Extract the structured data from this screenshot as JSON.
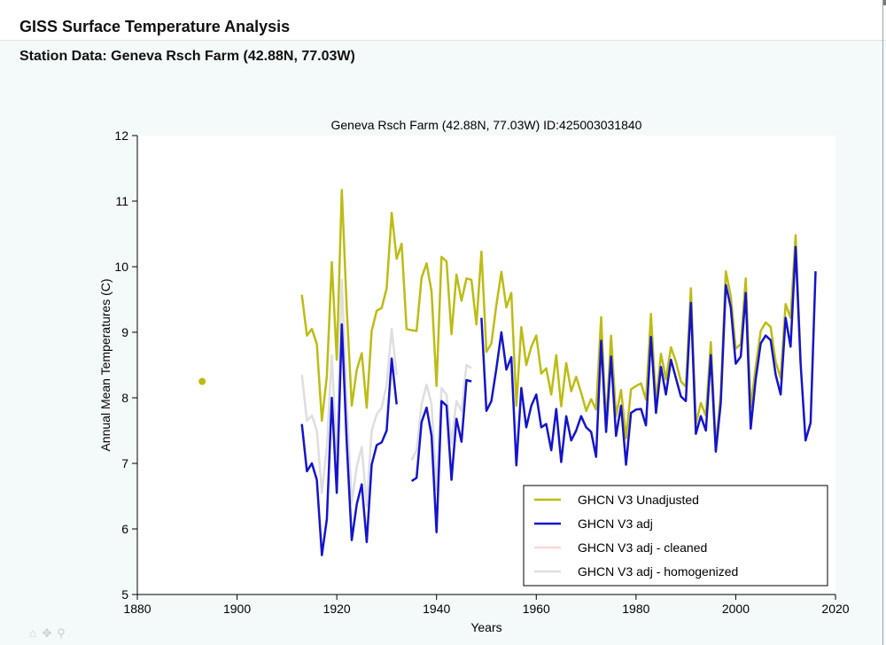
{
  "header": {
    "title": "GISS Surface Temperature Analysis",
    "station_heading": "Station Data: Geneva Rsch Farm (42.88N, 77.03W)"
  },
  "nav_tools": [
    {
      "name": "home-icon",
      "glyph": "⌂"
    },
    {
      "name": "pan-icon",
      "glyph": "✥"
    },
    {
      "name": "zoom-icon",
      "glyph": "⚲"
    }
  ],
  "chart_data": {
    "type": "line",
    "title": "Geneva Rsch Farm (42.88N, 77.03W) ID:425003031840",
    "xlabel": "Years",
    "ylabel": "Annual Mean Temperatures (C)",
    "xlim": [
      1880,
      2020
    ],
    "ylim": [
      5,
      12
    ],
    "xticks": [
      1880,
      1900,
      1920,
      1940,
      1960,
      1980,
      2000,
      2020
    ],
    "yticks": [
      5,
      6,
      7,
      8,
      9,
      10,
      11,
      12
    ],
    "legend_position": "bottom-right",
    "series": [
      {
        "name": "GHCN V3 adj - homogenized",
        "color": "#dedede",
        "segments": [
          [
            [
              1913,
              8.35
            ],
            [
              1914,
              7.65
            ],
            [
              1915,
              7.73
            ],
            [
              1916,
              7.5
            ],
            [
              1917,
              6.55
            ],
            [
              1918,
              7.25
            ],
            [
              1919,
              8.65
            ],
            [
              1920,
              7.1
            ],
            [
              1921,
              9.8
            ],
            [
              1922,
              7.9
            ],
            [
              1923,
              6.4
            ],
            [
              1924,
              6.95
            ],
            [
              1925,
              7.25
            ],
            [
              1926,
              6.35
            ],
            [
              1927,
              7.5
            ],
            [
              1928,
              7.75
            ],
            [
              1929,
              7.85
            ],
            [
              1930,
              8.2
            ],
            [
              1931,
              9.05
            ],
            [
              1932,
              8.35
            ]
          ],
          [
            [
              1935,
              7.05
            ],
            [
              1936,
              7.2
            ],
            [
              1937,
              7.9
            ],
            [
              1938,
              8.2
            ],
            [
              1939,
              7.9
            ],
            [
              1940,
              6.6
            ],
            [
              1941,
              8.15
            ],
            [
              1942,
              8.05
            ],
            [
              1943,
              7.3
            ],
            [
              1944,
              7.95
            ],
            [
              1945,
              7.8
            ],
            [
              1946,
              8.5
            ],
            [
              1947,
              8.45
            ]
          ]
        ]
      },
      {
        "name": "GHCN V3 adj - cleaned",
        "color": "#ffd6d6",
        "segments": []
      },
      {
        "name": "GHCN V3 Unadjusted",
        "color": "#bcbc14",
        "points": [
          [
            1893,
            8.25
          ]
        ],
        "segments": [
          [
            [
              1913,
              9.57
            ],
            [
              1914,
              8.95
            ],
            [
              1915,
              9.05
            ],
            [
              1916,
              8.82
            ],
            [
              1917,
              7.65
            ],
            [
              1918,
              8.33
            ],
            [
              1919,
              10.07
            ],
            [
              1920,
              8.58
            ],
            [
              1921,
              11.17
            ],
            [
              1922,
              9.35
            ],
            [
              1923,
              7.88
            ],
            [
              1924,
              8.43
            ],
            [
              1925,
              8.68
            ],
            [
              1926,
              7.85
            ],
            [
              1927,
              9.02
            ],
            [
              1928,
              9.33
            ],
            [
              1929,
              9.37
            ],
            [
              1930,
              9.67
            ],
            [
              1931,
              10.82
            ],
            [
              1932,
              10.12
            ],
            [
              1933,
              10.35
            ],
            [
              1934,
              9.05
            ],
            [
              1935,
              9.03
            ],
            [
              1936,
              9.02
            ],
            [
              1937,
              9.83
            ],
            [
              1938,
              10.05
            ],
            [
              1939,
              9.62
            ],
            [
              1940,
              8.18
            ],
            [
              1941,
              10.15
            ],
            [
              1942,
              10.08
            ],
            [
              1943,
              8.97
            ],
            [
              1944,
              9.88
            ],
            [
              1945,
              9.48
            ],
            [
              1946,
              9.82
            ],
            [
              1947,
              9.8
            ],
            [
              1948,
              9.12
            ],
            [
              1949,
              10.23
            ],
            [
              1950,
              8.7
            ],
            [
              1951,
              8.83
            ],
            [
              1952,
              9.42
            ],
            [
              1953,
              9.92
            ],
            [
              1954,
              9.38
            ],
            [
              1955,
              9.6
            ],
            [
              1956,
              7.88
            ],
            [
              1957,
              9.08
            ],
            [
              1958,
              8.5
            ],
            [
              1959,
              8.78
            ],
            [
              1960,
              8.95
            ],
            [
              1961,
              8.37
            ],
            [
              1962,
              8.45
            ],
            [
              1963,
              8.05
            ],
            [
              1964,
              8.65
            ],
            [
              1965,
              7.87
            ],
            [
              1966,
              8.53
            ],
            [
              1967,
              8.1
            ],
            [
              1968,
              8.32
            ],
            [
              1969,
              8.08
            ],
            [
              1970,
              7.8
            ],
            [
              1971,
              7.98
            ],
            [
              1972,
              7.82
            ],
            [
              1973,
              9.23
            ],
            [
              1974,
              7.58
            ],
            [
              1975,
              8.95
            ],
            [
              1976,
              7.72
            ],
            [
              1977,
              8.12
            ],
            [
              1978,
              7.38
            ],
            [
              1979,
              8.13
            ],
            [
              1980,
              8.18
            ],
            [
              1981,
              8.22
            ],
            [
              1982,
              7.97
            ],
            [
              1983,
              9.28
            ],
            [
              1984,
              7.92
            ],
            [
              1985,
              8.67
            ],
            [
              1986,
              8.28
            ],
            [
              1987,
              8.77
            ],
            [
              1988,
              8.55
            ],
            [
              1989,
              8.25
            ],
            [
              1990,
              8.17
            ],
            [
              1991,
              9.67
            ],
            [
              1992,
              7.6
            ],
            [
              1993,
              7.92
            ],
            [
              1994,
              7.73
            ],
            [
              1995,
              8.85
            ],
            [
              1996,
              7.27
            ],
            [
              1997,
              8.05
            ],
            [
              1998,
              9.93
            ],
            [
              1999,
              9.55
            ],
            [
              2000,
              8.75
            ],
            [
              2001,
              8.82
            ],
            [
              2002,
              9.82
            ],
            [
              2003,
              7.85
            ],
            [
              2004,
              8.47
            ],
            [
              2005,
              9.02
            ],
            [
              2006,
              9.15
            ],
            [
              2007,
              9.08
            ],
            [
              2008,
              8.55
            ],
            [
              2009,
              8.3
            ],
            [
              2010,
              9.43
            ],
            [
              2011,
              9.22
            ],
            [
              2012,
              10.48
            ],
            [
              2013,
              8.55
            ]
          ]
        ]
      },
      {
        "name": "GHCN V3 adj",
        "color": "#1414cc",
        "segments": [
          [
            [
              1913,
              7.6
            ],
            [
              1914,
              6.88
            ],
            [
              1915,
              7.0
            ],
            [
              1916,
              6.75
            ],
            [
              1917,
              5.6
            ],
            [
              1918,
              6.15
            ],
            [
              1919,
              8.0
            ],
            [
              1920,
              6.55
            ],
            [
              1921,
              9.12
            ],
            [
              1922,
              7.3
            ],
            [
              1923,
              5.83
            ],
            [
              1924,
              6.38
            ],
            [
              1925,
              6.68
            ],
            [
              1926,
              5.8
            ],
            [
              1927,
              6.98
            ],
            [
              1928,
              7.28
            ],
            [
              1929,
              7.32
            ],
            [
              1930,
              7.5
            ],
            [
              1931,
              8.6
            ],
            [
              1932,
              7.9
            ]
          ],
          [
            [
              1935,
              6.73
            ],
            [
              1936,
              6.78
            ],
            [
              1937,
              7.63
            ],
            [
              1938,
              7.85
            ],
            [
              1939,
              7.42
            ],
            [
              1940,
              5.95
            ],
            [
              1941,
              7.95
            ],
            [
              1942,
              7.88
            ],
            [
              1943,
              6.75
            ],
            [
              1944,
              7.68
            ],
            [
              1945,
              7.33
            ],
            [
              1946,
              8.27
            ],
            [
              1947,
              8.25
            ]
          ],
          [
            [
              1949,
              9.22
            ],
            [
              1950,
              7.8
            ],
            [
              1951,
              7.95
            ],
            [
              1952,
              8.45
            ],
            [
              1953,
              9.0
            ],
            [
              1954,
              8.43
            ],
            [
              1955,
              8.62
            ],
            [
              1956,
              6.97
            ],
            [
              1957,
              8.15
            ],
            [
              1958,
              7.55
            ],
            [
              1959,
              7.88
            ],
            [
              1960,
              8.05
            ],
            [
              1961,
              7.55
            ],
            [
              1962,
              7.6
            ],
            [
              1963,
              7.2
            ],
            [
              1964,
              7.83
            ],
            [
              1965,
              7.02
            ],
            [
              1966,
              7.72
            ],
            [
              1967,
              7.35
            ],
            [
              1968,
              7.5
            ],
            [
              1969,
              7.72
            ],
            [
              1970,
              7.55
            ],
            [
              1971,
              7.48
            ],
            [
              1972,
              7.1
            ],
            [
              1973,
              8.87
            ],
            [
              1974,
              7.48
            ],
            [
              1975,
              8.63
            ],
            [
              1976,
              7.42
            ],
            [
              1977,
              7.88
            ],
            [
              1978,
              6.98
            ],
            [
              1979,
              7.77
            ],
            [
              1980,
              7.82
            ],
            [
              1981,
              7.83
            ],
            [
              1982,
              7.58
            ],
            [
              1983,
              8.93
            ],
            [
              1984,
              7.77
            ],
            [
              1985,
              8.47
            ],
            [
              1986,
              8.05
            ],
            [
              1987,
              8.58
            ],
            [
              1988,
              8.3
            ],
            [
              1989,
              8.02
            ],
            [
              1990,
              7.95
            ],
            [
              1991,
              9.45
            ],
            [
              1992,
              7.45
            ],
            [
              1993,
              7.72
            ],
            [
              1994,
              7.5
            ],
            [
              1995,
              8.65
            ],
            [
              1996,
              7.18
            ],
            [
              1997,
              7.92
            ],
            [
              1998,
              9.72
            ],
            [
              1999,
              9.38
            ],
            [
              2000,
              8.52
            ],
            [
              2001,
              8.63
            ],
            [
              2002,
              9.6
            ],
            [
              2003,
              7.53
            ],
            [
              2004,
              8.28
            ],
            [
              2005,
              8.83
            ],
            [
              2006,
              8.95
            ],
            [
              2007,
              8.88
            ],
            [
              2008,
              8.35
            ],
            [
              2009,
              8.05
            ],
            [
              2010,
              9.22
            ],
            [
              2011,
              8.78
            ],
            [
              2012,
              10.3
            ],
            [
              2013,
              8.53
            ],
            [
              2014,
              7.35
            ],
            [
              2015,
              7.62
            ],
            [
              2016,
              9.93
            ]
          ]
        ]
      }
    ],
    "legend": [
      {
        "label": "GHCN V3 Unadjusted",
        "color": "#bcbc14"
      },
      {
        "label": "GHCN V3 adj",
        "color": "#1414cc"
      },
      {
        "label": "GHCN V3 adj - cleaned",
        "color": "#ffd6d6"
      },
      {
        "label": "GHCN V3 adj - homogenized",
        "color": "#dedede"
      }
    ]
  }
}
